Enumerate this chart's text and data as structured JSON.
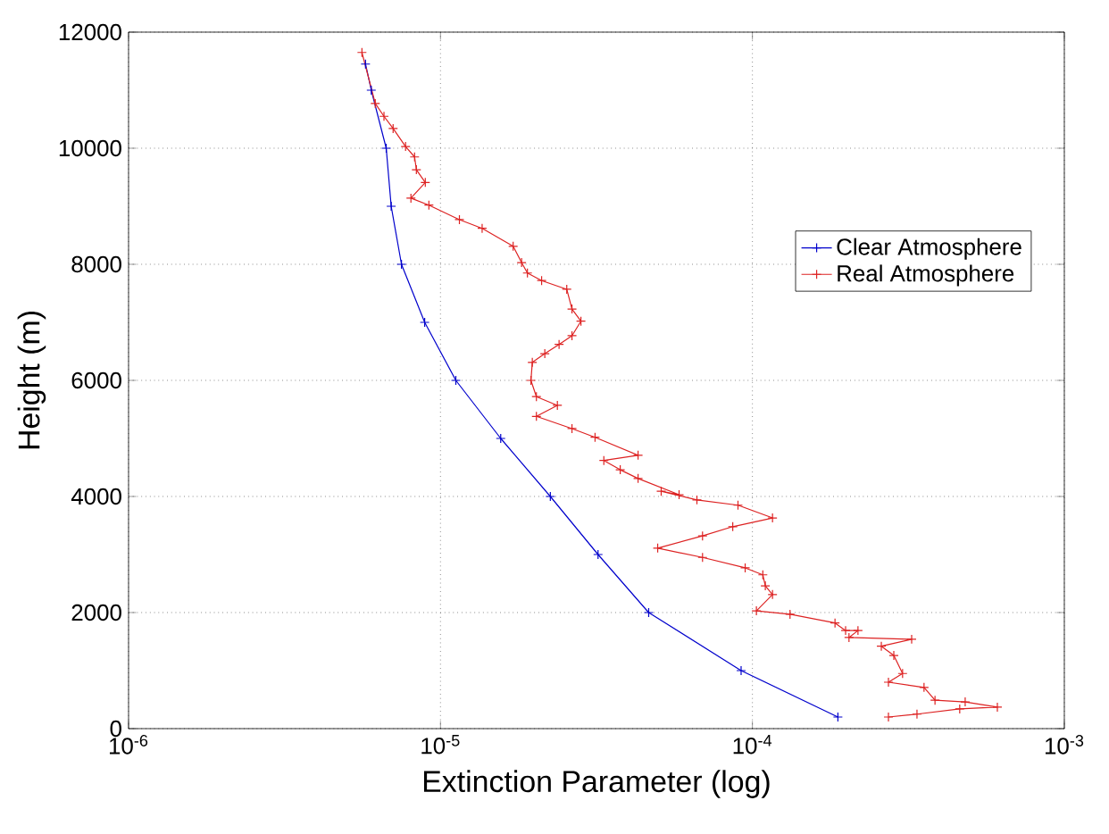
{
  "chart_data": {
    "type": "line",
    "xlabel": "Extinction Parameter (log)",
    "ylabel": "Height (m)",
    "log": "x",
    "grid": true,
    "legend": "top right",
    "marker": "cross",
    "line_style": "solid",
    "xlim": [
      1e-06,
      0.001
    ],
    "xticks": [
      {
        "value": 1e-06,
        "label": "10$^{-6}$"
      },
      {
        "value": 1e-05,
        "label": "10$^{-5}$"
      },
      {
        "value": 0.0001,
        "label": "10$^{-4}$"
      },
      {
        "value": 0.001,
        "label": "10$^{-3}$"
      }
    ],
    "ylim": [
      0,
      12000
    ],
    "yticks": [
      0,
      2000,
      4000,
      6000,
      8000,
      10000,
      12000
    ],
    "series": [
      {
        "name": "Clear Atmosphere",
        "color": "#0000cc",
        "x": [
          5.75e-06,
          6e-06,
          6.7e-06,
          6.95e-06,
          7.5e-06,
          8.9e-06,
          1.12e-05,
          1.56e-05,
          2.25e-05,
          3.2e-05,
          4.65e-05,
          9.2e-05,
          0.000188
        ],
        "values": [
          11450,
          11000,
          10000,
          9000,
          8000,
          7000,
          6000,
          5000,
          4000,
          3000,
          2000,
          1000,
          200
        ]
      },
      {
        "name": "Real Atmosphere",
        "color": "#dd2222",
        "x": [
          5.6e-06,
          6.18e-06,
          6.59e-06,
          7.05e-06,
          7.73e-06,
          8.26e-06,
          8.37e-06,
          8.94e-06,
          8.04e-06,
          9.18e-06,
          1.15e-05,
          1.36e-05,
          1.71e-05,
          1.82e-05,
          1.9e-05,
          2.11e-05,
          2.54e-05,
          2.64e-05,
          2.82e-05,
          2.64e-05,
          2.4e-05,
          2.16e-05,
          1.97e-05,
          1.95e-05,
          2.03e-05,
          2.37e-05,
          2.03e-05,
          2.64e-05,
          3.13e-05,
          4.3e-05,
          3.34e-05,
          3.77e-05,
          4.3e-05,
          5.82e-05,
          5.1e-05,
          6.64e-05,
          8.99e-05,
          0.000116,
          8.65e-05,
          6.92e-05,
          4.97e-05,
          6.92e-05,
          9.48e-05,
          0.000108,
          0.00011,
          0.000116,
          0.000103,
          0.000132,
          0.000184,
          0.000199,
          0.000218,
          0.000204,
          0.000324,
          0.000259,
          0.000284,
          0.000303,
          0.000273,
          0.000355,
          0.000385,
          0.000481,
          0.00061,
          0.000462,
          0.000337,
          0.000273
        ],
        "values": [
          11650,
          10770,
          10550,
          10340,
          10030,
          9850,
          9630,
          9410,
          9140,
          9020,
          8770,
          8620,
          8310,
          8030,
          7850,
          7720,
          7570,
          7230,
          7020,
          6770,
          6620,
          6460,
          6310,
          6000,
          5720,
          5570,
          5380,
          5170,
          5020,
          4710,
          4620,
          4460,
          4310,
          4030,
          4090,
          3940,
          3850,
          3630,
          3480,
          3320,
          3110,
          2950,
          2770,
          2650,
          2460,
          2310,
          2030,
          1970,
          1820,
          1690,
          1690,
          1570,
          1540,
          1420,
          1260,
          950,
          800,
          710,
          490,
          460,
          370,
          340,
          250,
          200
        ]
      }
    ]
  }
}
